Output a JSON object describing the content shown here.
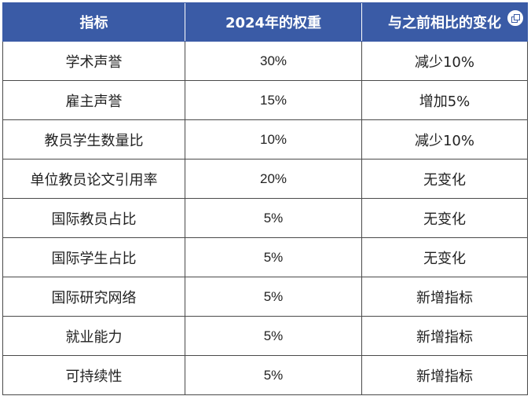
{
  "table": {
    "headers": [
      "指标",
      "2024年的权重",
      "与之前相比的变化"
    ],
    "rows": [
      [
        "学术声誉",
        "30%",
        "减少10%"
      ],
      [
        "雇主声誉",
        "15%",
        "增加5%"
      ],
      [
        "教员学生数量比",
        "10%",
        "减少10%"
      ],
      [
        "单位教员论文引用率",
        "20%",
        "无变化"
      ],
      [
        "国际教员占比",
        "5%",
        "无变化"
      ],
      [
        "国际学生占比",
        "5%",
        "无变化"
      ],
      [
        "国际研究网络",
        "5%",
        "新增指标"
      ],
      [
        "就业能力",
        "5%",
        "新增指标"
      ],
      [
        "可持续性",
        "5%",
        "新增指标"
      ]
    ]
  },
  "colors": {
    "header_background": "#3a5ba6",
    "header_text": "#ffffff",
    "grid_line": "#4a4a4a"
  },
  "icons": {
    "header_overlay": "copy-icon"
  }
}
